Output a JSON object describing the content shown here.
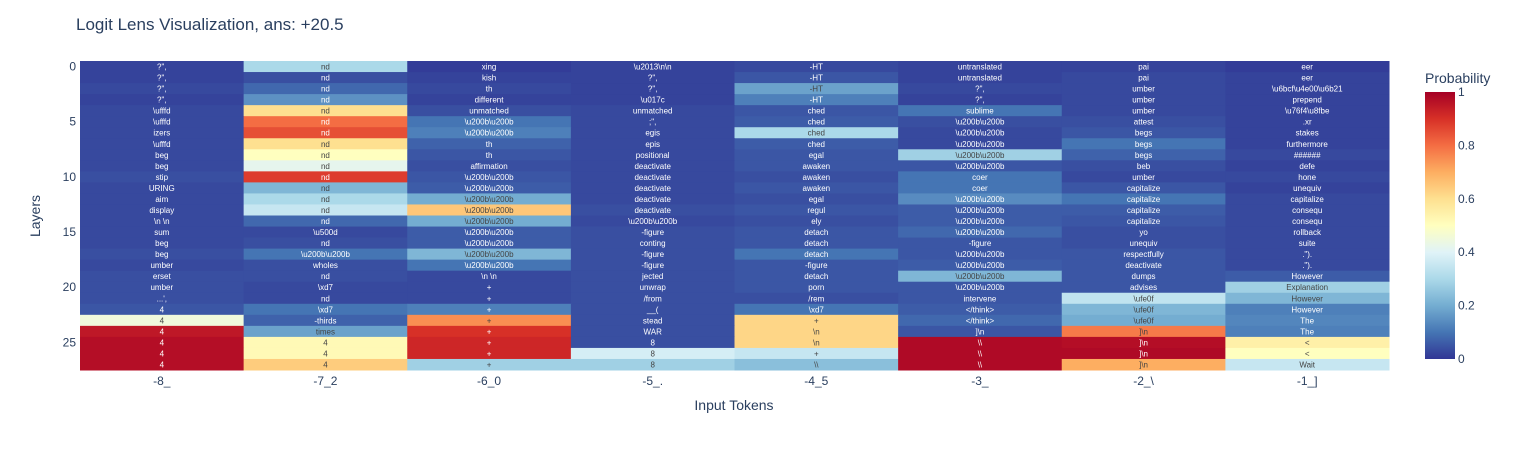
{
  "chart_data": {
    "type": "heatmap",
    "title": "Logit Lens Visualization, ans: +20.5",
    "xlabel": "Input Tokens",
    "ylabel": "Layers",
    "colorbar_title": "Probability",
    "colorbar_ticks": [
      "0",
      "0.2",
      "0.4",
      "0.6",
      "0.8",
      "1"
    ],
    "colorscale": "RdYlBu (reversed)",
    "zlim": [
      0,
      1
    ],
    "x_tick_labels": [
      "-8_",
      "-7_2",
      "-6_0",
      "-5_.",
      "-4_5",
      "-3_",
      "-2_\\",
      "-1_]"
    ],
    "y_tick_labels": [
      "0",
      "5",
      "10",
      "15",
      "20",
      "25"
    ],
    "y_tick_values": [
      0,
      5,
      10,
      15,
      20,
      25
    ],
    "layers": [
      0,
      1,
      2,
      3,
      4,
      5,
      6,
      7,
      8,
      9,
      10,
      11,
      12,
      13,
      14,
      15,
      16,
      17,
      18,
      19,
      20,
      21,
      22,
      23,
      24,
      25,
      26,
      27
    ],
    "text": [
      [
        "?\",",
        "nd",
        "xing",
        "\\u2013\\n\\n",
        "-HT",
        "untranslated",
        "pai",
        "eer"
      ],
      [
        "?\",",
        "nd",
        "kish",
        "?\",",
        "-HT",
        "untranslated",
        "pai",
        "eer"
      ],
      [
        "?\",",
        "nd",
        "th",
        "?\",",
        "-HT",
        "?\",",
        "umber",
        "\\u6bcf\\u4e00\\u6b21"
      ],
      [
        "?\",",
        "nd",
        "different",
        "\\u017c",
        "-HT",
        "?\",",
        "umber",
        "prepend"
      ],
      [
        "\\ufffd",
        "nd",
        "unmatched",
        "unmatched",
        "ched",
        "sublime",
        "umber",
        "\\u76f4\\u8fbe"
      ],
      [
        "\\ufffd",
        "nd",
        "\\u200b\\u200b",
        ";\",",
        "ched",
        "\\u200b\\u200b",
        "attest",
        ".xr"
      ],
      [
        "izers",
        "nd",
        "\\u200b\\u200b",
        "egis",
        "ched",
        "\\u200b\\u200b",
        "begs",
        "stakes"
      ],
      [
        "\\ufffd",
        "nd",
        "th",
        "epis",
        "ched",
        "\\u200b\\u200b",
        "begs",
        "furthermore"
      ],
      [
        "beg",
        "nd",
        "th",
        "positional",
        "egal",
        "\\u200b\\u200b",
        "begs",
        "######"
      ],
      [
        "beg",
        "nd",
        "affirmation",
        "deactivate",
        "awaken",
        "\\u200b\\u200b",
        "beb",
        "defe"
      ],
      [
        "stip",
        "nd",
        "\\u200b\\u200b",
        "deactivate",
        "awaken",
        "coer",
        "umber",
        "hone"
      ],
      [
        "URING",
        "nd",
        "\\u200b\\u200b",
        "deactivate",
        "awaken",
        "coer",
        "capitalize",
        "unequiv"
      ],
      [
        "aim",
        "nd",
        "\\u200b\\u200b",
        "deactivate",
        "egal",
        "\\u200b\\u200b",
        "capitalize",
        "capitalize"
      ],
      [
        "display",
        "nd",
        "\\u200b\\u200b",
        "deactivate",
        "regul",
        "\\u200b\\u200b",
        "capitalize",
        "consequ"
      ],
      [
        "\\n     \\n",
        "nd",
        "\\u200b\\u200b",
        "\\u200b\\u200b",
        "ely",
        "\\u200b\\u200b",
        "capitalize",
        "consequ"
      ],
      [
        "sum",
        "\\u500d",
        "\\u200b\\u200b",
        "-figure",
        "detach",
        "\\u200b\\u200b",
        "yo",
        "rollback"
      ],
      [
        "beg",
        "nd",
        "\\u200b\\u200b",
        "conting",
        "detach",
        "-figure",
        "unequiv",
        "suite"
      ],
      [
        "beg",
        "\\u200b\\u200b",
        "\\u200b\\u200b",
        "-figure",
        "detach",
        "\\u200b\\u200b",
        "respectfully",
        ".\")."
      ],
      [
        "umber",
        "wholes",
        "\\u200b\\u200b",
        "-figure",
        "-figure",
        "\\u200b\\u200b",
        "deactivate",
        ".\")."
      ],
      [
        "erset",
        "nd",
        "\\n   \\n",
        "jected",
        "detach",
        "\\u200b\\u200b",
        "dumps",
        "However"
      ],
      [
        "umber",
        "\\xd7",
        "+",
        "unwrap",
        "porn",
        "\\u200b\\u200b",
        "advises",
        "Explanation"
      ],
      [
        "...',",
        "nd",
        "+",
        "/from",
        "/rem",
        "intervene",
        "\\ufe0f",
        "However"
      ],
      [
        "4",
        "\\xd7",
        "+",
        "__(",
        "\\xd7",
        "</think>",
        "\\ufe0f",
        "However"
      ],
      [
        "4",
        "-thirds",
        "+",
        "stead",
        "+",
        "</think>",
        "\\ufe0f",
        "The"
      ],
      [
        "4",
        "times",
        "+",
        "WAR",
        "\\n",
        "]\\n",
        "]\\n",
        "The"
      ],
      [
        "4",
        "4",
        "+",
        "8",
        "\\n",
        "\\\\",
        "]\\n",
        "<"
      ],
      [
        "4",
        "4",
        "+",
        "8",
        "+",
        "\\\\",
        "]\\n",
        "<"
      ],
      [
        "4",
        "4",
        "+",
        "8",
        "\\\\",
        "\\\\",
        "]\\n",
        "Wait"
      ]
    ],
    "z": [
      [
        0.02,
        0.3,
        0.01,
        0.02,
        0.03,
        0.02,
        0.02,
        0.01
      ],
      [
        0.02,
        0.04,
        0.02,
        0.02,
        0.05,
        0.02,
        0.03,
        0.02
      ],
      [
        0.03,
        0.08,
        0.03,
        0.02,
        0.18,
        0.03,
        0.03,
        0.02
      ],
      [
        0.02,
        0.15,
        0.02,
        0.02,
        0.12,
        0.02,
        0.03,
        0.02
      ],
      [
        0.03,
        0.6,
        0.04,
        0.03,
        0.05,
        0.1,
        0.03,
        0.02
      ],
      [
        0.03,
        0.8,
        0.1,
        0.03,
        0.06,
        0.04,
        0.04,
        0.02
      ],
      [
        0.03,
        0.85,
        0.12,
        0.03,
        0.3,
        0.03,
        0.05,
        0.02
      ],
      [
        0.03,
        0.6,
        0.07,
        0.03,
        0.06,
        0.03,
        0.1,
        0.02
      ],
      [
        0.03,
        0.5,
        0.05,
        0.03,
        0.05,
        0.28,
        0.07,
        0.03
      ],
      [
        0.03,
        0.42,
        0.04,
        0.03,
        0.05,
        0.05,
        0.04,
        0.02
      ],
      [
        0.04,
        0.88,
        0.05,
        0.03,
        0.04,
        0.1,
        0.03,
        0.03
      ],
      [
        0.03,
        0.22,
        0.06,
        0.03,
        0.05,
        0.1,
        0.05,
        0.02
      ],
      [
        0.03,
        0.3,
        0.2,
        0.03,
        0.04,
        0.14,
        0.1,
        0.03
      ],
      [
        0.03,
        0.35,
        0.65,
        0.04,
        0.05,
        0.06,
        0.06,
        0.03
      ],
      [
        0.03,
        0.08,
        0.2,
        0.03,
        0.04,
        0.06,
        0.05,
        0.03
      ],
      [
        0.03,
        0.03,
        0.06,
        0.04,
        0.05,
        0.08,
        0.04,
        0.03
      ],
      [
        0.03,
        0.04,
        0.06,
        0.04,
        0.05,
        0.05,
        0.04,
        0.03
      ],
      [
        0.04,
        0.1,
        0.22,
        0.04,
        0.1,
        0.05,
        0.05,
        0.03
      ],
      [
        0.03,
        0.04,
        0.1,
        0.04,
        0.05,
        0.06,
        0.05,
        0.03
      ],
      [
        0.04,
        0.04,
        0.03,
        0.04,
        0.05,
        0.22,
        0.05,
        0.06
      ],
      [
        0.04,
        0.03,
        0.03,
        0.04,
        0.05,
        0.05,
        0.05,
        0.28
      ],
      [
        0.04,
        0.03,
        0.03,
        0.04,
        0.04,
        0.05,
        0.34,
        0.22
      ],
      [
        0.05,
        0.1,
        0.12,
        0.04,
        0.1,
        0.06,
        0.22,
        0.12
      ],
      [
        0.45,
        0.07,
        0.75,
        0.04,
        0.62,
        0.08,
        0.2,
        0.13
      ],
      [
        0.95,
        0.18,
        0.9,
        0.04,
        0.62,
        0.05,
        0.78,
        0.12
      ],
      [
        0.97,
        0.52,
        0.92,
        0.04,
        0.62,
        0.98,
        0.97,
        0.55
      ],
      [
        0.97,
        0.52,
        0.92,
        0.38,
        0.35,
        0.98,
        0.98,
        0.5
      ],
      [
        0.97,
        0.64,
        0.28,
        0.28,
        0.24,
        0.98,
        0.7,
        0.35
      ]
    ]
  }
}
